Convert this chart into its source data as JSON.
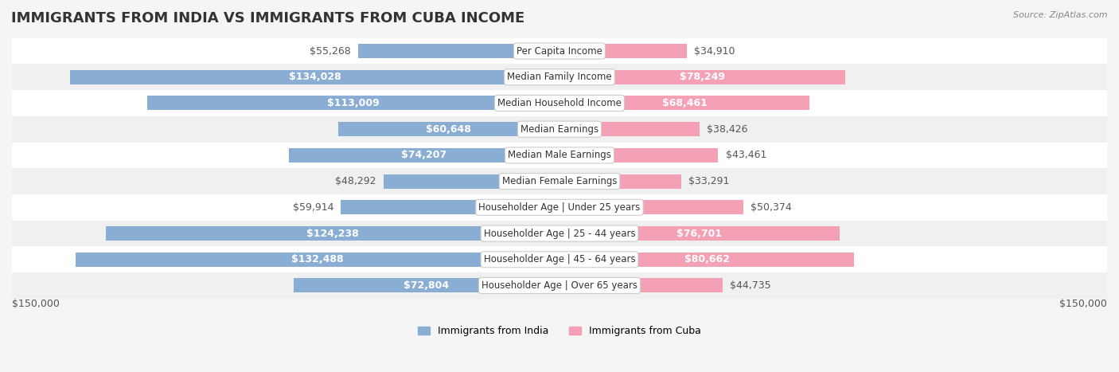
{
  "title": "IMMIGRANTS FROM INDIA VS IMMIGRANTS FROM CUBA INCOME",
  "source": "Source: ZipAtlas.com",
  "categories": [
    "Per Capita Income",
    "Median Family Income",
    "Median Household Income",
    "Median Earnings",
    "Median Male Earnings",
    "Median Female Earnings",
    "Householder Age | Under 25 years",
    "Householder Age | 25 - 44 years",
    "Householder Age | 45 - 64 years",
    "Householder Age | Over 65 years"
  ],
  "india_values": [
    55268,
    134028,
    113009,
    60648,
    74207,
    48292,
    59914,
    124238,
    132488,
    72804
  ],
  "cuba_values": [
    34910,
    78249,
    68461,
    38426,
    43461,
    33291,
    50374,
    76701,
    80662,
    44735
  ],
  "india_labels": [
    "$55,268",
    "$134,028",
    "$113,009",
    "$60,648",
    "$74,207",
    "$48,292",
    "$59,914",
    "$124,238",
    "$132,488",
    "$72,804"
  ],
  "cuba_labels": [
    "$34,910",
    "$78,249",
    "$68,461",
    "$38,426",
    "$43,461",
    "$33,291",
    "$50,374",
    "$76,701",
    "$80,662",
    "$44,735"
  ],
  "max_val": 150000,
  "india_color": "#8aadd4",
  "india_color_dark": "#5b8dbf",
  "cuba_color": "#f4a0b5",
  "cuba_color_dark": "#e96090",
  "bar_height": 0.55,
  "background_color": "#f5f5f5",
  "row_bg_light": "#ffffff",
  "row_bg_dark": "#eeeeee",
  "label_fontsize": 9,
  "title_fontsize": 13,
  "category_fontsize": 8.5
}
